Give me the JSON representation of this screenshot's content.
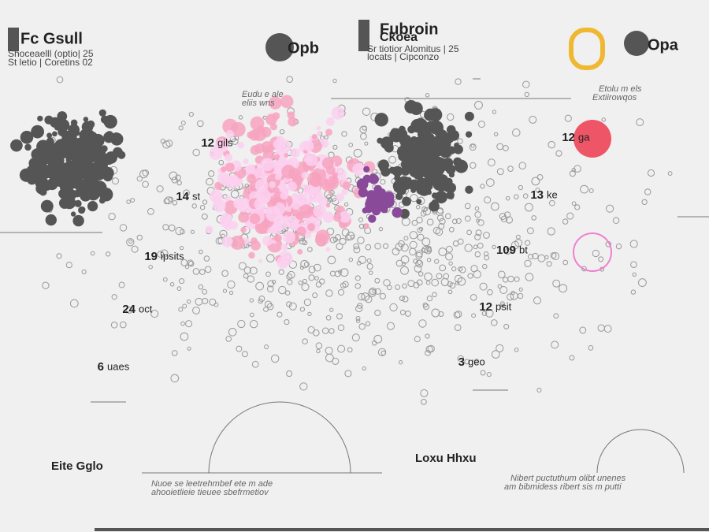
{
  "header": {
    "left": {
      "title": "Fc Gsull",
      "line1": "Shoceaelll (optio| 25",
      "line2": "St letio | Coretins 02"
    },
    "center_logo": "Opb",
    "center": {
      "title1": "Fubroin",
      "title2": "Ckoea",
      "line1": "Sr tiotior Alomitus | 25",
      "line2": "locats | Cipconzo"
    },
    "right_logo": "Opa"
  },
  "notes": {
    "top_left": [
      "Eudu e ale",
      "eliis wns"
    ],
    "top_right": [
      "Etolu m els",
      "Extiirowqos"
    ],
    "bottom_left": [
      "Nuoe se leetrehmbef ete m ade",
      "ahooietlieie tieuee sbefrmetiov"
    ],
    "bottom_right": [
      "Nibert puctuthum olibt unenes",
      "am bibmidess ribert sis m putti"
    ]
  },
  "labels": [
    {
      "num": "12",
      "text": "gils"
    },
    {
      "num": "14",
      "text": "st"
    },
    {
      "num": "19",
      "text": "ipsits"
    },
    {
      "num": "24",
      "text": "oct"
    },
    {
      "num": "6",
      "text": "uaes"
    },
    {
      "num": "12",
      "text": "ga"
    },
    {
      "num": "13",
      "text": "ke"
    },
    {
      "num": "109",
      "text": "bt"
    },
    {
      "num": "12",
      "text": "psit"
    },
    {
      "num": "3",
      "text": "geo"
    }
  ],
  "footer": {
    "left": "Eite Gglo",
    "center": "Loxu Hhxu"
  }
}
